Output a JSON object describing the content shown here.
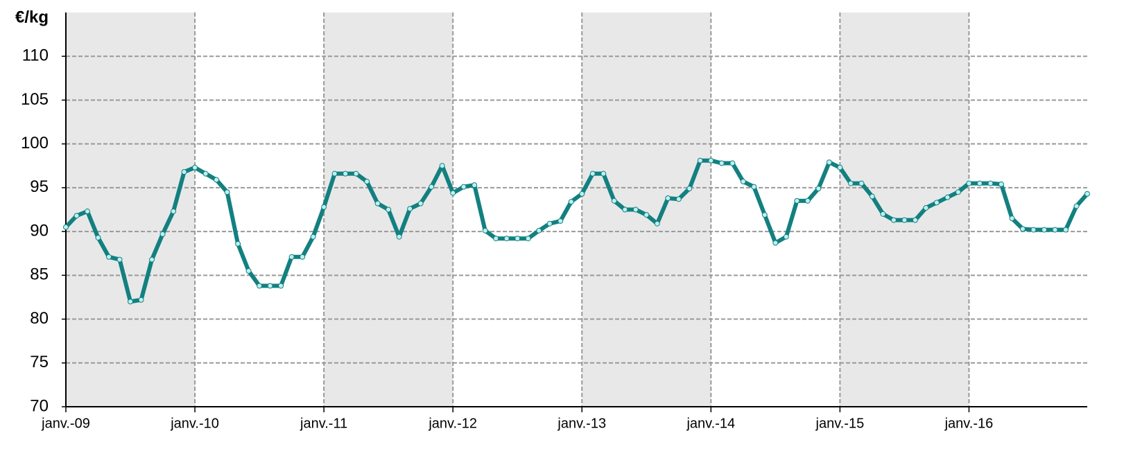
{
  "chart_data": {
    "type": "line",
    "y_label": "€/kg",
    "categories": [
      "janv.-09",
      null,
      null,
      null,
      null,
      null,
      null,
      null,
      null,
      null,
      null,
      null,
      "janv.-10",
      null,
      null,
      null,
      null,
      null,
      null,
      null,
      null,
      null,
      null,
      null,
      "janv.-11",
      null,
      null,
      null,
      null,
      null,
      null,
      null,
      null,
      null,
      null,
      null,
      "janv.-12",
      null,
      null,
      null,
      null,
      null,
      null,
      null,
      null,
      null,
      null,
      null,
      "janv.-13",
      null,
      null,
      null,
      null,
      null,
      null,
      null,
      null,
      null,
      null,
      null,
      "janv.-14",
      null,
      null,
      null,
      null,
      null,
      null,
      null,
      null,
      null,
      null,
      null,
      "janv.-15",
      null,
      null,
      null,
      null,
      null,
      null,
      null,
      null,
      null,
      null,
      null,
      "janv.-16",
      null,
      null,
      null,
      null,
      null,
      null,
      null,
      null,
      null,
      null,
      null
    ],
    "series": [
      {
        "color": "#138080",
        "marker_color": "#bff0f0",
        "values": [
          90.5,
          91.8,
          92.3,
          89.3,
          87.1,
          86.8,
          82.0,
          82.2,
          86.8,
          89.7,
          92.3,
          96.8,
          97.3,
          96.6,
          95.9,
          94.5,
          88.6,
          85.5,
          83.8,
          83.8,
          83.8,
          87.1,
          87.1,
          89.4,
          92.8,
          96.6,
          96.6,
          96.6,
          95.7,
          93.2,
          92.5,
          89.4,
          92.6,
          93.2,
          95.1,
          97.5,
          94.4,
          95.1,
          95.3,
          90.1,
          89.2,
          89.2,
          89.2,
          89.2,
          90.1,
          90.9,
          91.2,
          93.4,
          94.3,
          96.6,
          96.6,
          93.5,
          92.5,
          92.5,
          91.9,
          90.9,
          93.8,
          93.7,
          94.9,
          98.1,
          98.1,
          97.8,
          97.8,
          95.7,
          95.1,
          91.9,
          88.7,
          89.4,
          93.5,
          93.5,
          94.9,
          97.9,
          97.3,
          95.5,
          95.5,
          94.0,
          92.0,
          91.3,
          91.3,
          91.3,
          92.7,
          93.3,
          93.9,
          94.5,
          95.5,
          95.5,
          95.5,
          95.4,
          91.5,
          90.3,
          90.2,
          90.2,
          90.2,
          90.2,
          92.9,
          94.3
        ]
      }
    ],
    "ylim": [
      70,
      115
    ],
    "yticks": [
      70,
      75,
      80,
      85,
      90,
      95,
      100,
      105,
      110
    ],
    "grid": true,
    "band_color": "#e8e8e8"
  }
}
